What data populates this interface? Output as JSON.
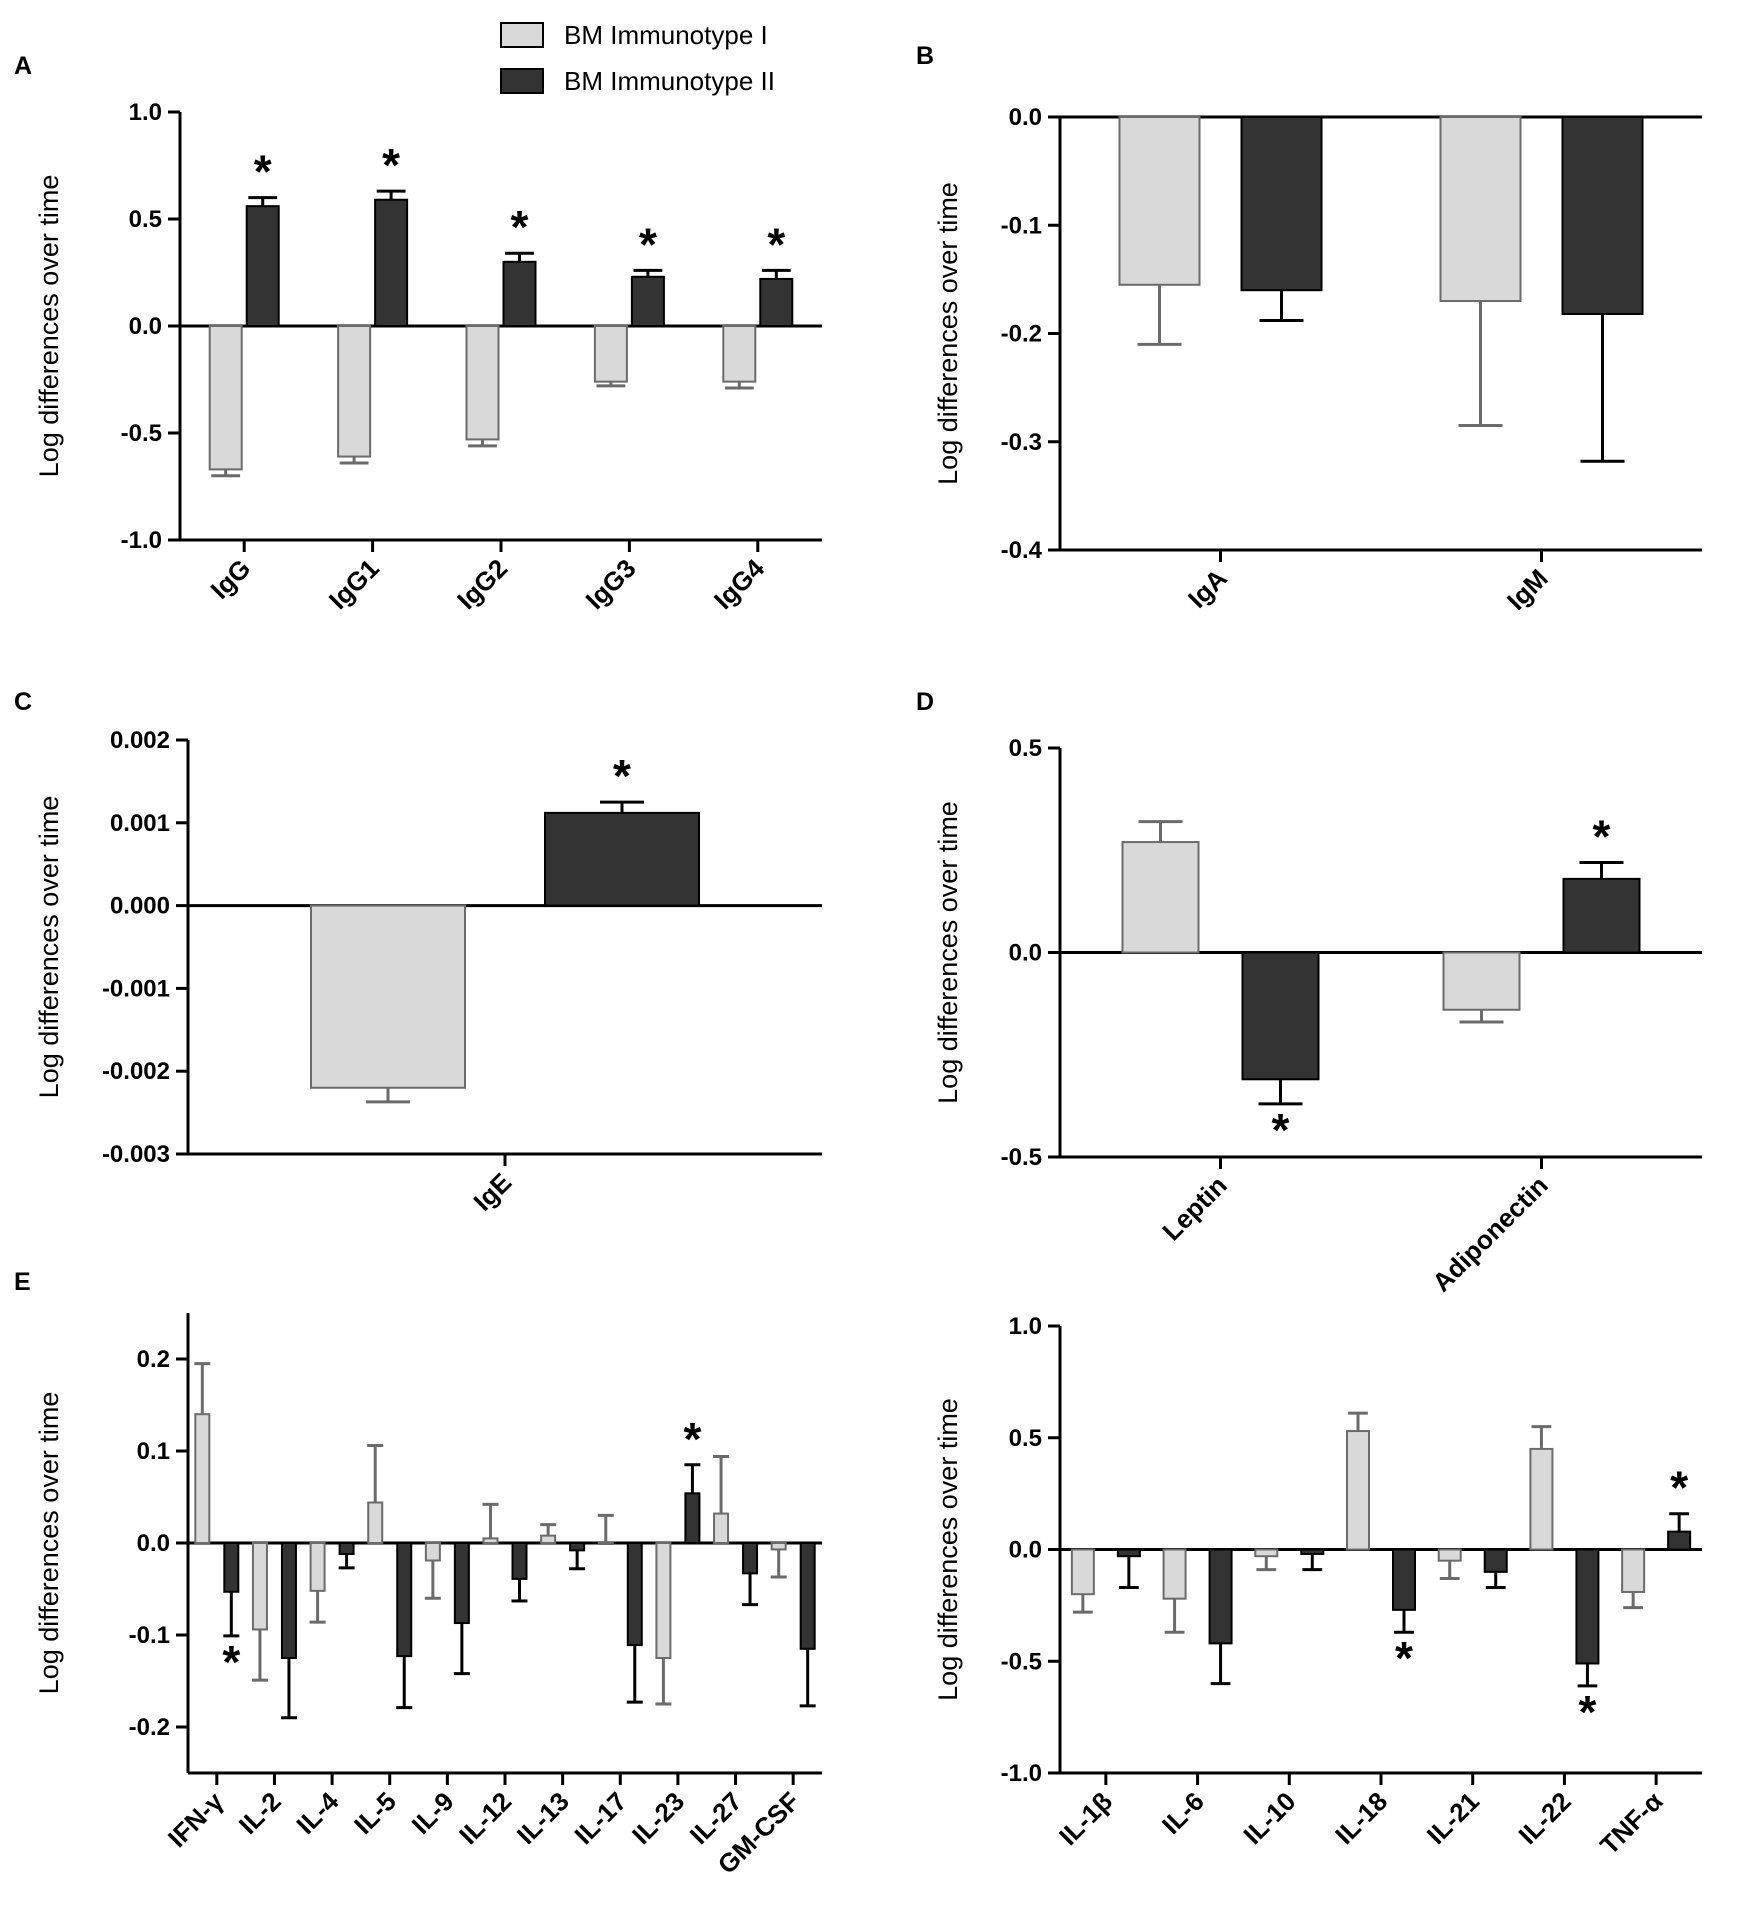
{
  "legend": {
    "series1": "BM Immunotype I",
    "series2": "BM Immunotype II",
    "color1": "#d9d9d9",
    "color2": "#333333"
  },
  "panel_labels": {
    "a": "A",
    "b": "B",
    "c": "C",
    "d": "D",
    "e": "E"
  },
  "chart_data": [
    {
      "id": "A",
      "type": "bar",
      "ylabel": "Log differences over time",
      "ylim": [
        -1.0,
        1.0
      ],
      "yticks": [
        1.0,
        0.5,
        0.0,
        -0.5,
        -1.0
      ],
      "ytick_labels": [
        "1.0",
        "0.5",
        "0.0",
        "-0.5",
        "-1.0"
      ],
      "categories": [
        "IgG",
        "IgG1",
        "IgG2",
        "IgG3",
        "IgG4"
      ],
      "series": [
        {
          "name": "BM Immunotype I",
          "values": [
            -0.67,
            -0.61,
            -0.53,
            -0.26,
            -0.26
          ],
          "errors": [
            0.03,
            0.03,
            0.03,
            0.02,
            0.03
          ]
        },
        {
          "name": "BM Immunotype II",
          "values": [
            0.56,
            0.59,
            0.3,
            0.23,
            0.22
          ],
          "errors": [
            0.04,
            0.04,
            0.04,
            0.03,
            0.04
          ]
        }
      ],
      "stars": [
        {
          "cat": 0,
          "series": 1,
          "pos": "above"
        },
        {
          "cat": 1,
          "series": 1,
          "pos": "above"
        },
        {
          "cat": 2,
          "series": 1,
          "pos": "above"
        },
        {
          "cat": 3,
          "series": 1,
          "pos": "above"
        },
        {
          "cat": 4,
          "series": 1,
          "pos": "above"
        }
      ]
    },
    {
      "id": "B",
      "type": "bar",
      "ylabel": "Log differences over time",
      "ylim": [
        -0.4,
        0.0
      ],
      "yticks": [
        0.0,
        -0.1,
        -0.2,
        -0.3,
        -0.4
      ],
      "ytick_labels": [
        "0.0",
        "-0.1",
        "-0.2",
        "-0.3",
        "-0.4"
      ],
      "categories": [
        "IgA",
        "IgM"
      ],
      "series": [
        {
          "name": "BM Immunotype I",
          "values": [
            -0.155,
            -0.17
          ],
          "errors": [
            0.055,
            0.115
          ]
        },
        {
          "name": "BM Immunotype II",
          "values": [
            -0.16,
            -0.182
          ],
          "errors": [
            0.028,
            0.136
          ]
        }
      ],
      "stars": []
    },
    {
      "id": "C",
      "type": "bar",
      "ylabel": "Log differences over time",
      "ylim": [
        -0.003,
        0.002
      ],
      "yticks": [
        0.002,
        0.001,
        0.0,
        -0.001,
        -0.002,
        -0.003
      ],
      "ytick_labels": [
        "0.002",
        "0.001",
        "0.000",
        "-0.001",
        "-0.002",
        "-0.003"
      ],
      "categories": [
        "IgE"
      ],
      "series": [
        {
          "name": "BM Immunotype I",
          "values": [
            -0.0022
          ],
          "errors": [
            0.00017
          ]
        },
        {
          "name": "BM Immunotype II",
          "values": [
            0.00112
          ],
          "errors": [
            0.00013
          ]
        }
      ],
      "stars": [
        {
          "cat": 0,
          "series": 1,
          "pos": "above"
        }
      ]
    },
    {
      "id": "D",
      "type": "bar",
      "ylabel": "Log differences over time",
      "ylim": [
        -0.5,
        0.5
      ],
      "yticks": [
        0.5,
        0.0,
        -0.5
      ],
      "ytick_labels": [
        "0.5",
        "0.0",
        "-0.5"
      ],
      "categories": [
        "Leptin",
        "Adiponectin"
      ],
      "series": [
        {
          "name": "BM Immunotype I",
          "values": [
            0.27,
            -0.14
          ],
          "errors": [
            0.05,
            0.03
          ]
        },
        {
          "name": "BM Immunotype II",
          "values": [
            -0.31,
            0.18
          ],
          "errors": [
            0.06,
            0.04
          ]
        }
      ],
      "stars": [
        {
          "cat": 0,
          "series": 1,
          "pos": "below"
        },
        {
          "cat": 1,
          "series": 1,
          "pos": "above"
        }
      ]
    },
    {
      "id": "E1",
      "type": "bar",
      "ylabel": "Log differences over time",
      "ylim": [
        -0.25,
        0.25
      ],
      "yticks": [
        0.2,
        0.1,
        0.0,
        -0.1,
        -0.2
      ],
      "ytick_labels": [
        "0.2",
        "0.1",
        "0.0",
        "-0.1",
        "-0.2"
      ],
      "categories": [
        "IFN-γ",
        "IL-2",
        "IL-4",
        "IL-5",
        "IL-9",
        "IL-12",
        "IL-13",
        "IL-17",
        "IL-23",
        "IL-27",
        "GM-CSF"
      ],
      "series": [
        {
          "name": "BM Immunotype I",
          "values": [
            0.14,
            -0.094,
            -0.052,
            0.044,
            -0.019,
            0.005,
            0.008,
            0.0,
            -0.125,
            0.032,
            -0.007
          ],
          "errors": [
            0.055,
            0.055,
            0.034,
            0.062,
            0.041,
            0.037,
            0.012,
            0.03,
            0.05,
            0.062,
            0.03
          ]
        },
        {
          "name": "BM Immunotype II",
          "values": [
            -0.053,
            -0.125,
            -0.012,
            -0.123,
            -0.087,
            -0.039,
            -0.008,
            -0.111,
            0.054,
            -0.033,
            -0.115
          ],
          "errors": [
            0.048,
            0.065,
            0.015,
            0.056,
            0.055,
            0.024,
            0.02,
            0.062,
            0.031,
            0.034,
            0.062
          ]
        }
      ],
      "stars": [
        {
          "cat": 0,
          "series": 1,
          "pos": "below"
        },
        {
          "cat": 8,
          "series": 1,
          "pos": "above"
        }
      ]
    },
    {
      "id": "E2",
      "type": "bar",
      "ylabel": "Log differences over time",
      "ylim": [
        -1.0,
        1.0
      ],
      "yticks": [
        1.0,
        0.5,
        0.0,
        -0.5,
        -1.0
      ],
      "ytick_labels": [
        "1.0",
        "0.5",
        "0.0",
        "-0.5",
        "-1.0"
      ],
      "categories": [
        "IL-1β",
        "IL-6",
        "IL-10",
        "IL-18",
        "IL-21",
        "IL-22",
        "TNF-α"
      ],
      "series": [
        {
          "name": "BM Immunotype I",
          "values": [
            -0.2,
            -0.22,
            -0.03,
            0.53,
            -0.05,
            0.45,
            -0.19
          ],
          "errors": [
            0.08,
            0.15,
            0.06,
            0.08,
            0.08,
            0.1,
            0.07
          ]
        },
        {
          "name": "BM Immunotype II",
          "values": [
            -0.03,
            -0.42,
            -0.02,
            -0.27,
            -0.1,
            -0.51,
            0.08
          ],
          "errors": [
            0.14,
            0.18,
            0.07,
            0.1,
            0.07,
            0.1,
            0.08
          ]
        }
      ],
      "stars": [
        {
          "cat": 3,
          "series": 1,
          "pos": "below"
        },
        {
          "cat": 5,
          "series": 1,
          "pos": "below"
        },
        {
          "cat": 6,
          "series": 1,
          "pos": "above"
        }
      ]
    }
  ]
}
